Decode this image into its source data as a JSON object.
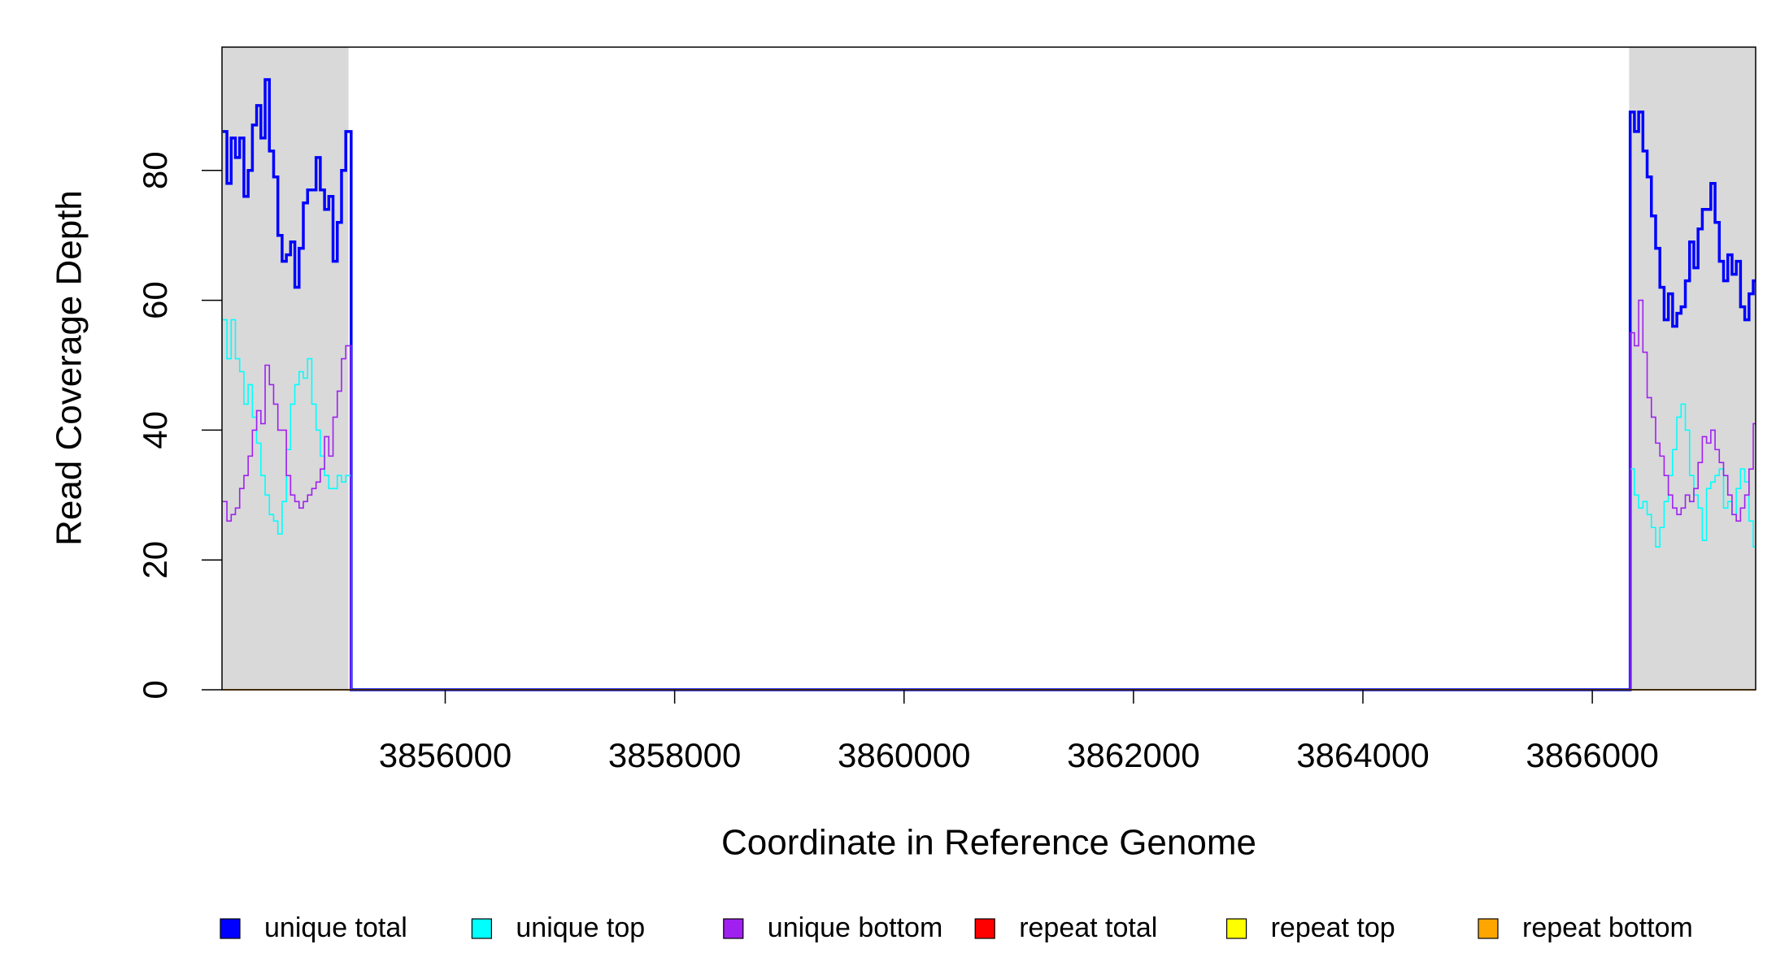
{
  "chart_data": {
    "type": "line",
    "step": true,
    "xlabel": "Coordinate in Reference Genome",
    "ylabel": "Read Coverage Depth",
    "xlim": [
      3854054,
      3867424
    ],
    "ylim": [
      0,
      99
    ],
    "xticks": [
      3856000,
      3858000,
      3860000,
      3862000,
      3864000,
      3866000
    ],
    "yticks": [
      0,
      20,
      40,
      60,
      80
    ],
    "highlight_ranges": [
      [
        3854054,
        3855157
      ],
      [
        3866321,
        3867424
      ]
    ],
    "highlight_color": "#d9d9d9",
    "legend_position": "bottom",
    "x": [
      3854060,
      3854097,
      3854134,
      3854171,
      3854208,
      3854245,
      3854282,
      3854319,
      3854356,
      3854393,
      3854430,
      3854467,
      3854504,
      3854541,
      3854578,
      3854615,
      3854652,
      3854689,
      3854726,
      3854763,
      3854800,
      3854837,
      3854874,
      3854911,
      3854948,
      3854985,
      3855022,
      3855059,
      3855096,
      3855133,
      3855180,
      3866310,
      3866330,
      3866367,
      3866404,
      3866441,
      3866478,
      3866515,
      3866552,
      3866589,
      3866626,
      3866663,
      3866700,
      3866737,
      3866774,
      3866811,
      3866848,
      3866885,
      3866922,
      3866959,
      3866996,
      3867033,
      3867070,
      3867107,
      3867144,
      3867181,
      3867218,
      3867255,
      3867292,
      3867329,
      3867366,
      3867403
    ],
    "series": [
      {
        "name": "unique total",
        "color": "#0000ff",
        "width": 3.5,
        "values": [
          86,
          78,
          85,
          82,
          85,
          76,
          80,
          87,
          90,
          85,
          94,
          83,
          79,
          70,
          66,
          67,
          69,
          62,
          68,
          75,
          77,
          77,
          82,
          77,
          74,
          76,
          66,
          72,
          80,
          86,
          0,
          0,
          89,
          86,
          89,
          83,
          79,
          73,
          68,
          62,
          57,
          61,
          56,
          58,
          59,
          63,
          69,
          65,
          71,
          74,
          74,
          78,
          72,
          66,
          63,
          67,
          64,
          66,
          59,
          57,
          61,
          63
        ]
      },
      {
        "name": "unique top",
        "color": "#00ffff",
        "width": 1.6,
        "values": [
          57,
          51,
          57,
          51,
          49,
          44,
          47,
          42,
          38,
          33,
          30,
          27,
          26,
          24,
          29,
          37,
          44,
          47,
          49,
          48,
          51,
          44,
          40,
          36,
          33,
          31,
          31,
          33,
          32,
          33,
          0,
          0,
          34,
          30,
          28,
          29,
          27,
          25,
          22,
          25,
          29,
          33,
          37,
          42,
          44,
          40,
          33,
          30,
          28,
          23,
          31,
          32,
          33,
          34,
          28,
          29,
          27,
          31,
          34,
          32,
          26,
          22
        ]
      },
      {
        "name": "unique bottom",
        "color": "#a020f0",
        "width": 1.6,
        "values": [
          29,
          26,
          27,
          28,
          31,
          33,
          36,
          40,
          43,
          41,
          50,
          47,
          44,
          40,
          40,
          33,
          30,
          29,
          28,
          29,
          30,
          31,
          32,
          34,
          39,
          36,
          42,
          46,
          51,
          53,
          0,
          0,
          55,
          53,
          60,
          52,
          45,
          42,
          38,
          36,
          33,
          30,
          28,
          27,
          28,
          30,
          29,
          31,
          35,
          39,
          38,
          40,
          37,
          35,
          33,
          30,
          27,
          26,
          28,
          30,
          34,
          41
        ]
      },
      {
        "name": "repeat total",
        "color": "#ff0000",
        "width": 1.6,
        "values": [
          0,
          0,
          0,
          0,
          0,
          0,
          0,
          0,
          0,
          0,
          0,
          0,
          0,
          0,
          0,
          0,
          0,
          0,
          0,
          0,
          0,
          0,
          0,
          0,
          0,
          0,
          0,
          0,
          0,
          0,
          0,
          0,
          0,
          0,
          0,
          0,
          0,
          0,
          0,
          0,
          0,
          0,
          0,
          0,
          0,
          0,
          0,
          0,
          0,
          0,
          0,
          0,
          0,
          0,
          0,
          0,
          0,
          0,
          0,
          0,
          0,
          0
        ]
      },
      {
        "name": "repeat top",
        "color": "#ffff00",
        "width": 1.6,
        "values": [
          0,
          0,
          0,
          0,
          0,
          0,
          0,
          0,
          0,
          0,
          0,
          0,
          0,
          0,
          0,
          0,
          0,
          0,
          0,
          0,
          0,
          0,
          0,
          0,
          0,
          0,
          0,
          0,
          0,
          0,
          0,
          0,
          0,
          0,
          0,
          0,
          0,
          0,
          0,
          0,
          0,
          0,
          0,
          0,
          0,
          0,
          0,
          0,
          0,
          0,
          0,
          0,
          0,
          0,
          0,
          0,
          0,
          0,
          0,
          0,
          0,
          0
        ]
      },
      {
        "name": "repeat bottom",
        "color": "#ffa500",
        "width": 1.6,
        "values": [
          0,
          0,
          0,
          0,
          0,
          0,
          0,
          0,
          0,
          0,
          0,
          0,
          0,
          0,
          0,
          0,
          0,
          0,
          0,
          0,
          0,
          0,
          0,
          0,
          0,
          0,
          0,
          0,
          0,
          0,
          0,
          0,
          0,
          0,
          0,
          0,
          0,
          0,
          0,
          0,
          0,
          0,
          0,
          0,
          0,
          0,
          0,
          0,
          0,
          0,
          0,
          0,
          0,
          0,
          0,
          0,
          0,
          0,
          0,
          0,
          0,
          0
        ]
      }
    ]
  }
}
